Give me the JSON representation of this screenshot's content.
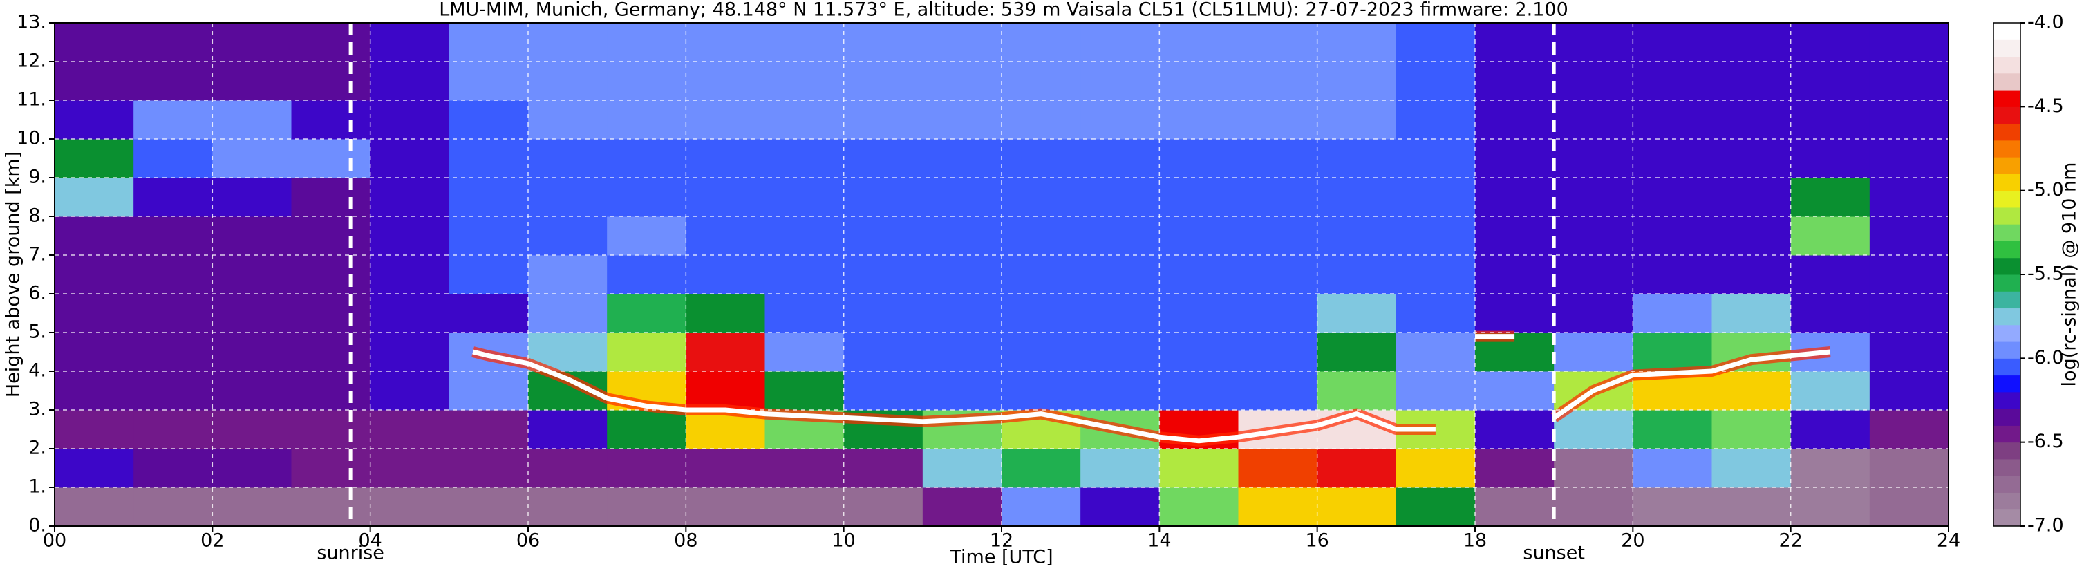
{
  "chart_data": {
    "type": "heatmap",
    "title": "LMU-MIM, Munich, Germany; 48.148° N 11.573° E, altitude: 539 m    Vaisala CL51 (CL51LMU): 27-07-2023    firmware: 2.100",
    "x_label": "Time [UTC]",
    "y_label": "Height above ground [km]",
    "xlim": [
      0,
      24
    ],
    "ylim": [
      0,
      13
    ],
    "xticks": [
      {
        "value": 0,
        "label": "00"
      },
      {
        "value": 2,
        "label": "02"
      },
      {
        "value": 4,
        "label": "04"
      },
      {
        "value": 6,
        "label": "06"
      },
      {
        "value": 8,
        "label": "08"
      },
      10,
      12,
      14,
      16,
      18,
      20,
      22,
      24
    ],
    "yticks": [
      {
        "value": 0,
        "label": "0."
      },
      {
        "value": 1,
        "label": "1."
      },
      {
        "value": 2,
        "label": "2."
      },
      {
        "value": 3,
        "label": "3."
      },
      {
        "value": 4,
        "label": "4."
      },
      {
        "value": 5,
        "label": "5."
      },
      {
        "value": 6,
        "label": "6."
      },
      {
        "value": 7,
        "label": "7."
      },
      {
        "value": 8,
        "label": "8."
      },
      {
        "value": 9,
        "label": "9."
      },
      {
        "value": 10,
        "label": "10."
      },
      {
        "value": 11,
        "label": "11."
      },
      {
        "value": 12,
        "label": "12."
      },
      {
        "value": 13,
        "label": "13."
      }
    ],
    "grid": true,
    "x": [
      0.5,
      1.5,
      2.5,
      3.5,
      4.5,
      5.5,
      6.5,
      7.5,
      8.5,
      9.5,
      10.5,
      11.5,
      12.5,
      13.5,
      14.5,
      15.5,
      16.5,
      17.5,
      18.5,
      19.5,
      20.5,
      21.5,
      22.5,
      23.5
    ],
    "y": [
      0.5,
      1.5,
      2.5,
      3.5,
      4.5,
      5.5,
      6.5,
      7.5,
      8.5,
      9.5,
      10.5,
      11.5,
      12.5
    ],
    "z": [
      [
        -6.7,
        -6.7,
        -6.7,
        -6.7,
        -6.7,
        -6.7,
        -6.7,
        -6.7,
        -6.7,
        -6.7,
        -6.7,
        -6.4,
        -6.0,
        -6.2,
        -5.3,
        -4.9,
        -4.9,
        -5.5,
        -6.7,
        -6.8,
        -6.85,
        -6.85,
        -6.85,
        -6.7
      ],
      [
        -6.3,
        -6.35,
        -6.35,
        -6.4,
        -6.45,
        -6.45,
        -6.45,
        -6.45,
        -6.45,
        -6.45,
        -6.4,
        -5.8,
        -5.6,
        -5.7,
        -5.2,
        -4.7,
        -4.6,
        -5.0,
        -6.5,
        -6.8,
        -6.0,
        -5.7,
        -6.85,
        -6.8
      ],
      [
        -6.5,
        -6.5,
        -6.5,
        -6.5,
        -6.45,
        -6.4,
        -6.3,
        -5.5,
        -5.0,
        -5.3,
        -5.4,
        -5.3,
        -5.2,
        -5.3,
        -4.4,
        -4.3,
        -4.3,
        -5.2,
        -6.3,
        -5.8,
        -5.6,
        -5.3,
        -6.3,
        -6.4
      ],
      [
        -6.35,
        -6.35,
        -6.35,
        -6.35,
        -6.3,
        -6.0,
        -5.5,
        -4.9,
        -4.4,
        -5.5,
        -6.1,
        -6.1,
        -6.1,
        -6.1,
        -6.1,
        -6.1,
        -5.3,
        -5.9,
        -6.0,
        -5.2,
        -5.0,
        -4.9,
        -5.8,
        -6.2
      ],
      [
        -6.35,
        -6.35,
        -6.35,
        -6.35,
        -6.3,
        -5.9,
        -5.7,
        -5.2,
        -4.6,
        -6.0,
        -6.1,
        -6.1,
        -6.1,
        -6.1,
        -6.1,
        -6.1,
        -5.5,
        -6.0,
        -5.5,
        -6.0,
        -5.6,
        -5.3,
        -5.9,
        -6.2
      ],
      [
        -6.35,
        -6.35,
        -6.35,
        -6.35,
        -6.3,
        -6.2,
        -6.0,
        -5.6,
        -5.4,
        -6.1,
        -6.1,
        -6.1,
        -6.1,
        -6.1,
        -6.1,
        -6.1,
        -5.8,
        -6.1,
        -6.2,
        -6.2,
        -6.0,
        -5.8,
        -6.2,
        -6.3
      ],
      [
        -6.35,
        -6.35,
        -6.35,
        -6.35,
        -6.3,
        -6.1,
        -6.0,
        -6.1,
        -6.1,
        -6.1,
        -6.1,
        -6.1,
        -6.1,
        -6.1,
        -6.1,
        -6.1,
        -6.1,
        -6.1,
        -6.2,
        -6.3,
        -6.3,
        -6.3,
        -6.3,
        -6.3
      ],
      [
        -6.35,
        -6.35,
        -6.35,
        -6.35,
        -6.3,
        -6.1,
        -6.1,
        -5.9,
        -6.1,
        -6.1,
        -6.1,
        -6.1,
        -6.1,
        -6.1,
        -6.1,
        -6.1,
        -6.1,
        -6.1,
        -6.2,
        -6.3,
        -6.3,
        -6.3,
        -5.3,
        -6.3
      ],
      [
        -5.8,
        -6.2,
        -6.2,
        -6.35,
        -6.3,
        -6.1,
        -6.1,
        -6.1,
        -6.1,
        -6.1,
        -6.1,
        -6.1,
        -6.1,
        -6.1,
        -6.1,
        -6.1,
        -6.1,
        -6.1,
        -6.2,
        -6.3,
        -6.3,
        -6.3,
        -5.5,
        -6.3
      ],
      [
        -5.4,
        -6.1,
        -5.9,
        -6.0,
        -6.3,
        -6.1,
        -6.1,
        -6.1,
        -6.1,
        -6.1,
        -6.1,
        -6.1,
        -6.1,
        -6.1,
        -6.1,
        -6.1,
        -6.1,
        -6.1,
        -6.2,
        -6.3,
        -6.3,
        -6.3,
        -6.3,
        -6.3
      ],
      [
        -6.3,
        -5.9,
        -5.9,
        -6.3,
        -6.2,
        -6.1,
        -6.0,
        -6.0,
        -6.0,
        -6.0,
        -6.0,
        -6.0,
        -6.0,
        -6.0,
        -6.0,
        -6.0,
        -6.0,
        -6.1,
        -6.2,
        -6.3,
        -6.3,
        -6.3,
        -6.3,
        -6.3
      ],
      [
        -6.35,
        -6.35,
        -6.35,
        -6.35,
        -6.3,
        -6.0,
        -6.0,
        -6.0,
        -6.0,
        -6.0,
        -6.0,
        -6.0,
        -6.0,
        -6.0,
        -6.0,
        -6.0,
        -6.0,
        -6.1,
        -6.2,
        -6.3,
        -6.3,
        -6.3,
        -6.3,
        -6.3
      ],
      [
        -6.35,
        -6.35,
        -6.35,
        -6.35,
        -6.3,
        -6.0,
        -6.0,
        -6.0,
        -6.0,
        -6.0,
        -6.0,
        -6.0,
        -6.0,
        -6.0,
        -6.0,
        -6.0,
        -6.0,
        -6.1,
        -6.2,
        -6.3,
        -6.3,
        -6.3,
        -6.3,
        -6.3
      ]
    ],
    "cloud_base": {
      "color": "#ffffff",
      "x": [
        5.3,
        5.5,
        6,
        6.5,
        7,
        7.5,
        8,
        8.5,
        9,
        10,
        11,
        12,
        12.5,
        13,
        14,
        14.5,
        15,
        16,
        16.5,
        17,
        17.5,
        17.8,
        18,
        18.5,
        18.8,
        19,
        19.5,
        20,
        21,
        21.5,
        22,
        22.5
      ],
      "values": [
        4.5,
        4.4,
        4.2,
        3.8,
        3.3,
        3.1,
        3.0,
        3.0,
        2.9,
        2.8,
        2.7,
        2.8,
        2.9,
        2.7,
        2.3,
        2.2,
        2.3,
        2.6,
        2.9,
        2.5,
        2.5,
        null,
        4.9,
        4.9,
        null,
        2.8,
        3.5,
        3.9,
        4.0,
        4.3,
        4.4,
        4.5
      ]
    },
    "annotations": [
      {
        "label": "sunrise",
        "x": 3.75
      },
      {
        "label": "sunset",
        "x": 19.0
      }
    ],
    "colorbar": {
      "label": "log(rc-signal) @ 910 nm",
      "lim": [
        -7,
        -4
      ],
      "ticks": [
        {
          "value": -4,
          "label": "-4.0"
        },
        {
          "value": -4.5,
          "label": "-4.5"
        },
        {
          "value": -5,
          "label": "-5.0"
        },
        {
          "value": -5.5,
          "label": "-5.5"
        },
        {
          "value": -6,
          "label": "-6.0"
        },
        {
          "value": -6.5,
          "label": "-6.5"
        },
        {
          "value": -7,
          "label": "-7.0"
        }
      ],
      "colors": [
        "#a58ba5",
        "#9c7c9c",
        "#946b94",
        "#8b5a8b",
        "#7e3f82",
        "#72198a",
        "#5a0a9a",
        "#3d06c8",
        "#1010ff",
        "#3a5cff",
        "#6f8eff",
        "#93aaff",
        "#80c8e0",
        "#3cb4a0",
        "#20b050",
        "#0a9030",
        "#30c040",
        "#70d860",
        "#b0e840",
        "#e8f020",
        "#f8d000",
        "#f8a000",
        "#f87800",
        "#f04000",
        "#e81010",
        "#f00000",
        "#e8c8c8",
        "#f4e0e0",
        "#f8f0f0",
        "#ffffff"
      ]
    }
  }
}
